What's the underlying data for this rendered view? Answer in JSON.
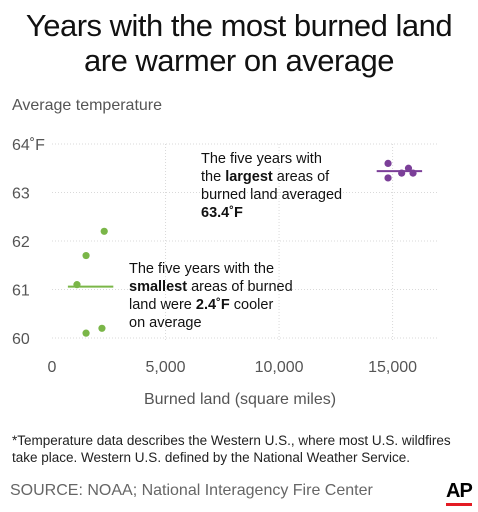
{
  "chart_data": {
    "type": "scatter",
    "title": [
      "Years with the most burned land",
      "are warmer on average"
    ],
    "ylabel": "Average temperature",
    "xlabel": "Burned land (square miles)",
    "xlim": [
      0,
      17000
    ],
    "ylim": [
      59.9,
      64.1
    ],
    "xticks": [
      0,
      5000,
      10000,
      15000
    ],
    "xtick_labels": [
      "0",
      "5,000",
      "10,000",
      "15,000"
    ],
    "yticks": [
      60,
      61,
      62,
      63,
      64
    ],
    "ytick_labels": [
      "60",
      "61",
      "62",
      "63",
      "64˚F"
    ],
    "grid": true,
    "series": [
      {
        "group": "smallest",
        "color": "#7ab648",
        "points": [
          {
            "x": 1100,
            "y": 61.1
          },
          {
            "x": 1500,
            "y": 61.7
          },
          {
            "x": 2300,
            "y": 62.2
          },
          {
            "x": 1500,
            "y": 60.1
          },
          {
            "x": 2200,
            "y": 60.2
          }
        ],
        "mean": 61.06,
        "mean_range": [
          700,
          2700
        ]
      },
      {
        "group": "largest",
        "color": "#7b3f98",
        "points": [
          {
            "x": 14800,
            "y": 63.6
          },
          {
            "x": 14800,
            "y": 63.3
          },
          {
            "x": 15400,
            "y": 63.4
          },
          {
            "x": 15700,
            "y": 63.5
          },
          {
            "x": 15900,
            "y": 63.4
          }
        ],
        "mean": 63.44,
        "mean_range": [
          14300,
          16300
        ]
      }
    ],
    "annotations": {
      "largest": [
        "The five years with",
        "the ",
        "largest",
        " areas of",
        "burned land averaged",
        "63.4˚F"
      ],
      "smallest": [
        "The five years with the",
        "smallest",
        " areas of burned",
        "land were ",
        "2.4˚F",
        " cooler",
        "on average"
      ]
    }
  },
  "footnote": "*Temperature data describes the Western U.S., where most U.S. wildfires take place. Western U.S. defined by the National Weather Service.",
  "source": "SOURCE: NOAA; National Interagency Fire Center",
  "logo": "AP"
}
